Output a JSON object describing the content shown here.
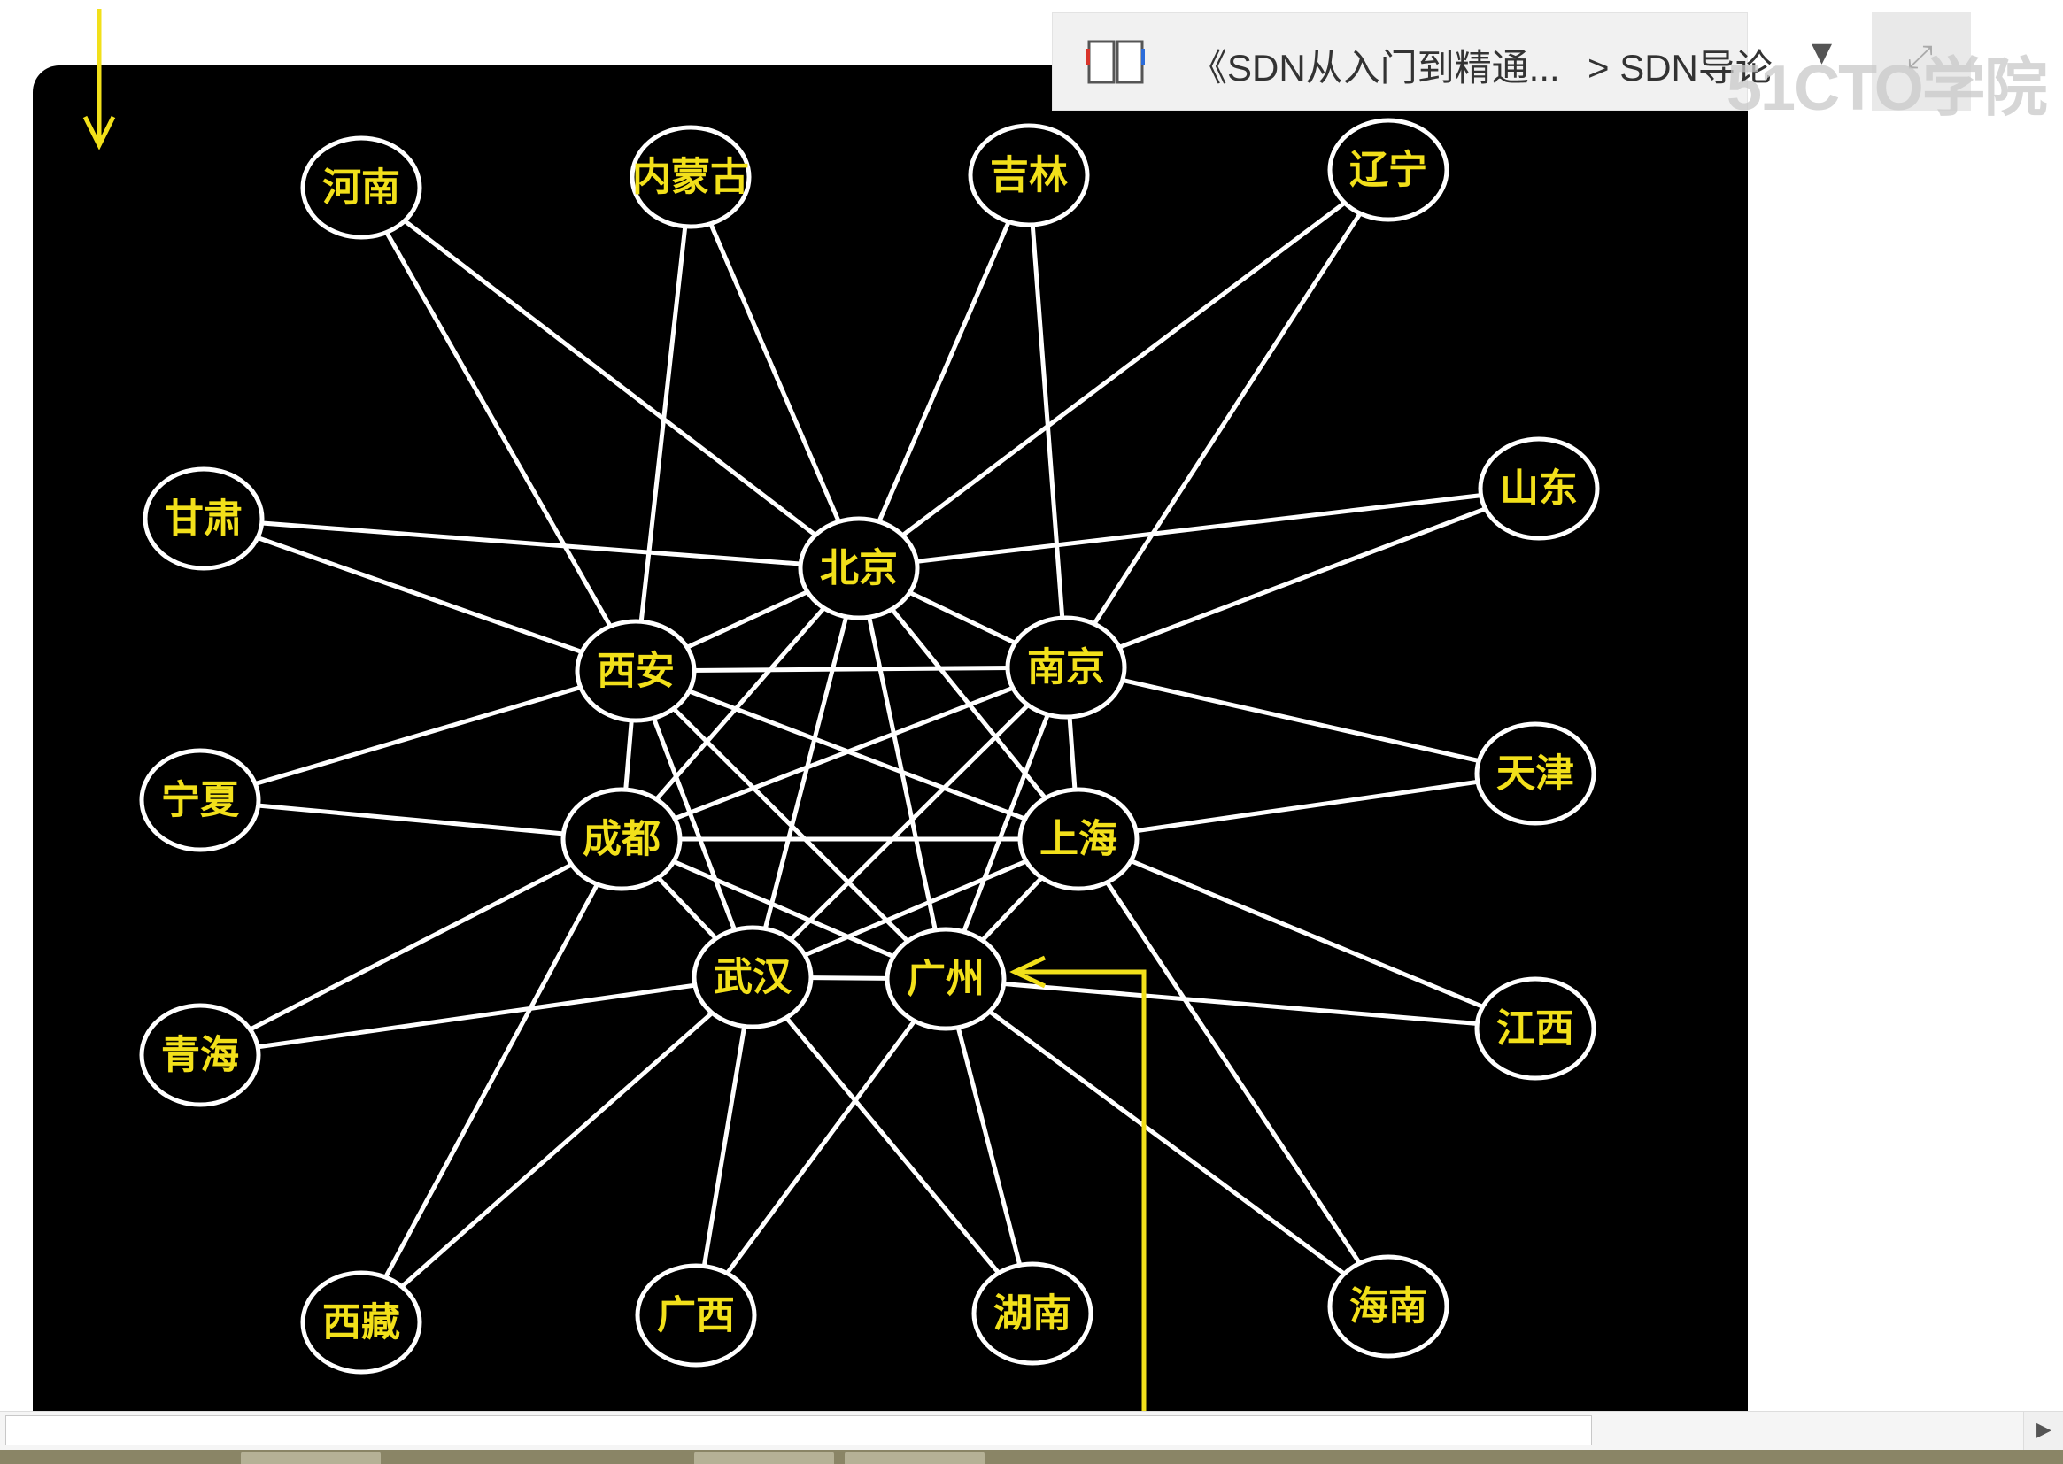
{
  "breadcrumb": {
    "book_icon": "book-icon",
    "course_title": "《SDN从入门到精通...",
    "chapter_title": "> SDN导论",
    "dropdown_icon": "chevron-down-icon",
    "expand_icon": "expand-icon"
  },
  "watermark": "51CTO学院",
  "annotation_color": "#f2e01a",
  "diagram": {
    "nodes": [
      {
        "id": "henan",
        "label": "河南"
      },
      {
        "id": "neimenggu",
        "label": "内蒙古"
      },
      {
        "id": "jilin",
        "label": "吉林"
      },
      {
        "id": "liaoning",
        "label": "辽宁"
      },
      {
        "id": "gansu",
        "label": "甘肃"
      },
      {
        "id": "shandong",
        "label": "山东"
      },
      {
        "id": "beijing",
        "label": "北京"
      },
      {
        "id": "xian",
        "label": "西安"
      },
      {
        "id": "nanjing",
        "label": "南京"
      },
      {
        "id": "ningxia",
        "label": "宁夏"
      },
      {
        "id": "tianjin",
        "label": "天津"
      },
      {
        "id": "chengdu",
        "label": "成都"
      },
      {
        "id": "shanghai",
        "label": "上海"
      },
      {
        "id": "wuhan",
        "label": "武汉"
      },
      {
        "id": "guangzhou",
        "label": "广州"
      },
      {
        "id": "qinghai",
        "label": "青海"
      },
      {
        "id": "jiangxi",
        "label": "江西"
      },
      {
        "id": "xizang",
        "label": "西藏"
      },
      {
        "id": "guangxi",
        "label": "广西"
      },
      {
        "id": "hunan",
        "label": "湖南"
      },
      {
        "id": "hainan",
        "label": "海南"
      }
    ],
    "edges": [
      [
        "henan",
        "beijing"
      ],
      [
        "henan",
        "xian"
      ],
      [
        "neimenggu",
        "beijing"
      ],
      [
        "neimenggu",
        "xian"
      ],
      [
        "jilin",
        "beijing"
      ],
      [
        "jilin",
        "nanjing"
      ],
      [
        "liaoning",
        "beijing"
      ],
      [
        "liaoning",
        "nanjing"
      ],
      [
        "gansu",
        "beijing"
      ],
      [
        "gansu",
        "xian"
      ],
      [
        "shandong",
        "beijing"
      ],
      [
        "shandong",
        "nanjing"
      ],
      [
        "ningxia",
        "xian"
      ],
      [
        "ningxia",
        "chengdu"
      ],
      [
        "tianjin",
        "nanjing"
      ],
      [
        "tianjin",
        "shanghai"
      ],
      [
        "qinghai",
        "chengdu"
      ],
      [
        "qinghai",
        "wuhan"
      ],
      [
        "jiangxi",
        "shanghai"
      ],
      [
        "jiangxi",
        "guangzhou"
      ],
      [
        "xizang",
        "chengdu"
      ],
      [
        "xizang",
        "wuhan"
      ],
      [
        "guangxi",
        "wuhan"
      ],
      [
        "guangxi",
        "guangzhou"
      ],
      [
        "hunan",
        "wuhan"
      ],
      [
        "hunan",
        "guangzhou"
      ],
      [
        "hainan",
        "shanghai"
      ],
      [
        "hainan",
        "guangzhou"
      ],
      [
        "beijing",
        "xian"
      ],
      [
        "beijing",
        "nanjing"
      ],
      [
        "beijing",
        "chengdu"
      ],
      [
        "beijing",
        "shanghai"
      ],
      [
        "beijing",
        "wuhan"
      ],
      [
        "beijing",
        "guangzhou"
      ],
      [
        "xian",
        "nanjing"
      ],
      [
        "xian",
        "chengdu"
      ],
      [
        "xian",
        "shanghai"
      ],
      [
        "xian",
        "wuhan"
      ],
      [
        "xian",
        "guangzhou"
      ],
      [
        "nanjing",
        "chengdu"
      ],
      [
        "nanjing",
        "shanghai"
      ],
      [
        "nanjing",
        "wuhan"
      ],
      [
        "nanjing",
        "guangzhou"
      ],
      [
        "chengdu",
        "shanghai"
      ],
      [
        "chengdu",
        "wuhan"
      ],
      [
        "chengdu",
        "guangzhou"
      ],
      [
        "shanghai",
        "wuhan"
      ],
      [
        "shanghai",
        "guangzhou"
      ],
      [
        "wuhan",
        "guangzhou"
      ]
    ]
  }
}
